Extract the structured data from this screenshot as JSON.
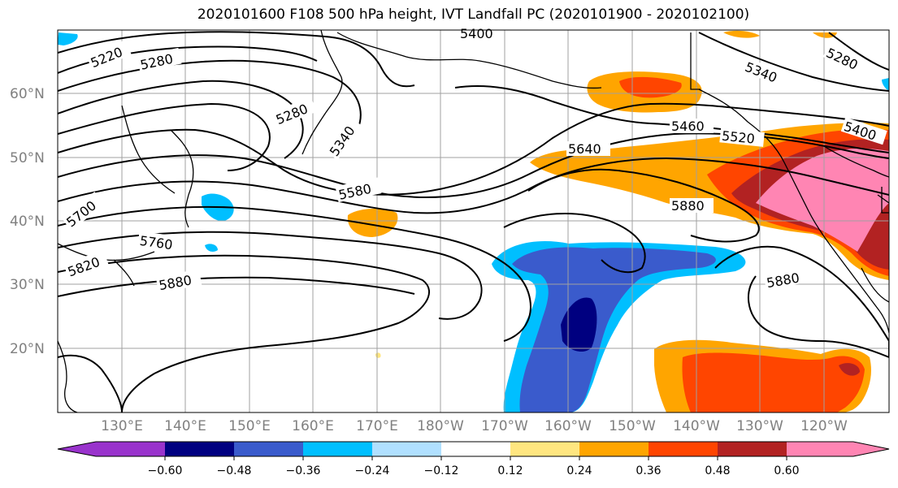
{
  "title": "2020101600 F108 500 hPa height, IVT Landfall PC (2020101900 - 2020102100)",
  "map": {
    "lat_labels": [
      "60°N",
      "50°N",
      "40°N",
      "30°N",
      "20°N"
    ],
    "lon_labels": [
      "130°E",
      "140°E",
      "150°E",
      "160°E",
      "170°E",
      "180°W",
      "170°W",
      "160°W",
      "150°W",
      "140°W",
      "130°W",
      "120°W"
    ],
    "height_contour_labels": [
      "5220",
      "5280",
      "5400",
      "5280",
      "5340",
      "5700",
      "5760",
      "5820",
      "5880",
      "5580",
      "5640",
      "5460",
      "5520",
      "5880",
      "5880",
      "5340",
      "5400",
      "5280"
    ],
    "colors": {
      "ocean": "#ffffff",
      "grid": "#a0a0a0",
      "contour": "#000000"
    }
  },
  "colorbar": {
    "tick_labels": [
      "−0.60",
      "−0.48",
      "−0.36",
      "−0.24",
      "−0.12",
      "0.12",
      "0.24",
      "0.36",
      "0.48",
      "0.60"
    ],
    "colors": [
      "#9933cc",
      "#000080",
      "#3a5bcc",
      "#00bfff",
      "#b0e0ff",
      "#ffffff",
      "#ffe680",
      "#ffa500",
      "#ff4500",
      "#b22222",
      "#ff85b3"
    ]
  }
}
